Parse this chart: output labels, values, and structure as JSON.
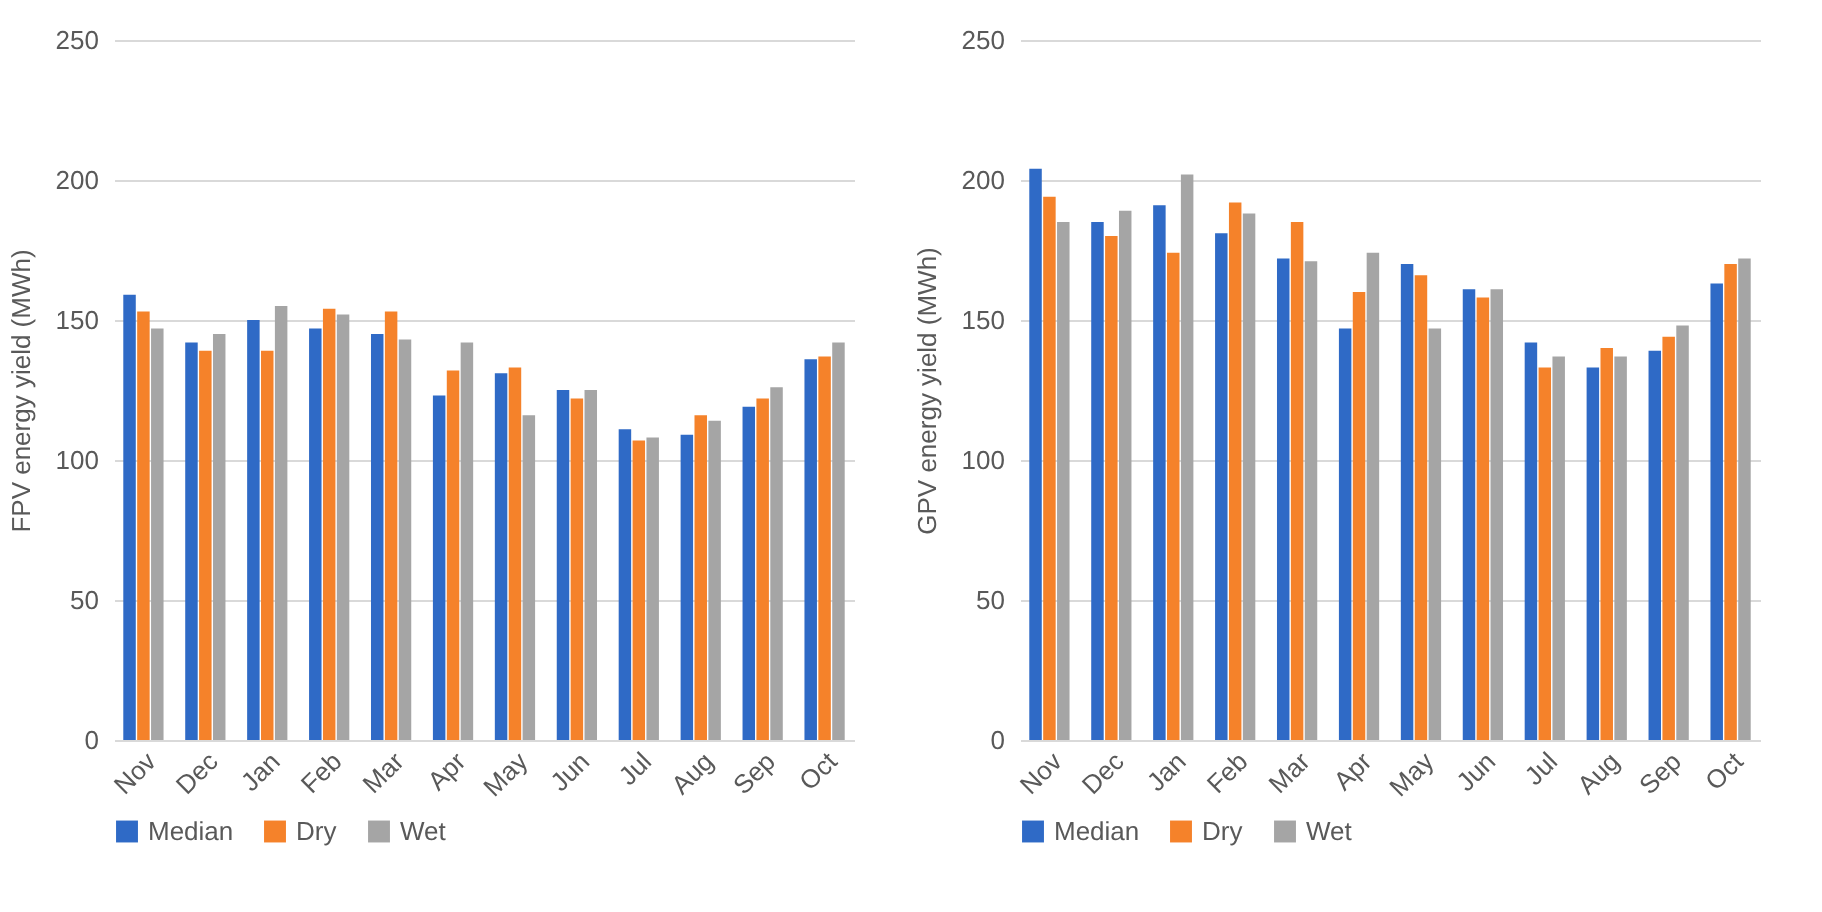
{
  "chart_data": [
    {
      "type": "bar",
      "ylabel": "FPV energy yield (MWh)",
      "categories": [
        "Nov",
        "Dec",
        "Jan",
        "Feb",
        "Mar",
        "Apr",
        "May",
        "Jun",
        "Jul",
        "Aug",
        "Sep",
        "Oct"
      ],
      "series": [
        {
          "name": "Median",
          "color": "#2f6ac6",
          "values": [
            159,
            142,
            150,
            147,
            145,
            123,
            131,
            125,
            111,
            109,
            119,
            136
          ]
        },
        {
          "name": "Dry",
          "color": "#f5822a",
          "values": [
            153,
            139,
            139,
            154,
            153,
            132,
            133,
            122,
            107,
            116,
            122,
            137
          ]
        },
        {
          "name": "Wet",
          "color": "#a5a5a5",
          "values": [
            147,
            145,
            155,
            152,
            143,
            142,
            116,
            125,
            108,
            114,
            126,
            142
          ]
        }
      ],
      "ylim": [
        0,
        250
      ],
      "yticks": [
        0,
        50,
        100,
        150,
        200,
        250
      ],
      "grid": "y",
      "legend": "bottom"
    },
    {
      "type": "bar",
      "ylabel": "GPV energy yield (MWh)",
      "categories": [
        "Nov",
        "Dec",
        "Jan",
        "Feb",
        "Mar",
        "Apr",
        "May",
        "Jun",
        "Jul",
        "Aug",
        "Sep",
        "Oct"
      ],
      "series": [
        {
          "name": "Median",
          "color": "#2f6ac6",
          "values": [
            204,
            185,
            191,
            181,
            172,
            147,
            170,
            161,
            142,
            133,
            139,
            163
          ]
        },
        {
          "name": "Dry",
          "color": "#f5822a",
          "values": [
            194,
            180,
            174,
            192,
            185,
            160,
            166,
            158,
            133,
            140,
            144,
            170
          ]
        },
        {
          "name": "Wet",
          "color": "#a5a5a5",
          "values": [
            185,
            189,
            202,
            188,
            171,
            174,
            147,
            161,
            137,
            137,
            148,
            172
          ]
        }
      ],
      "ylim": [
        0,
        250
      ],
      "yticks": [
        0,
        50,
        100,
        150,
        200,
        250
      ],
      "grid": "y",
      "legend": "bottom"
    }
  ]
}
